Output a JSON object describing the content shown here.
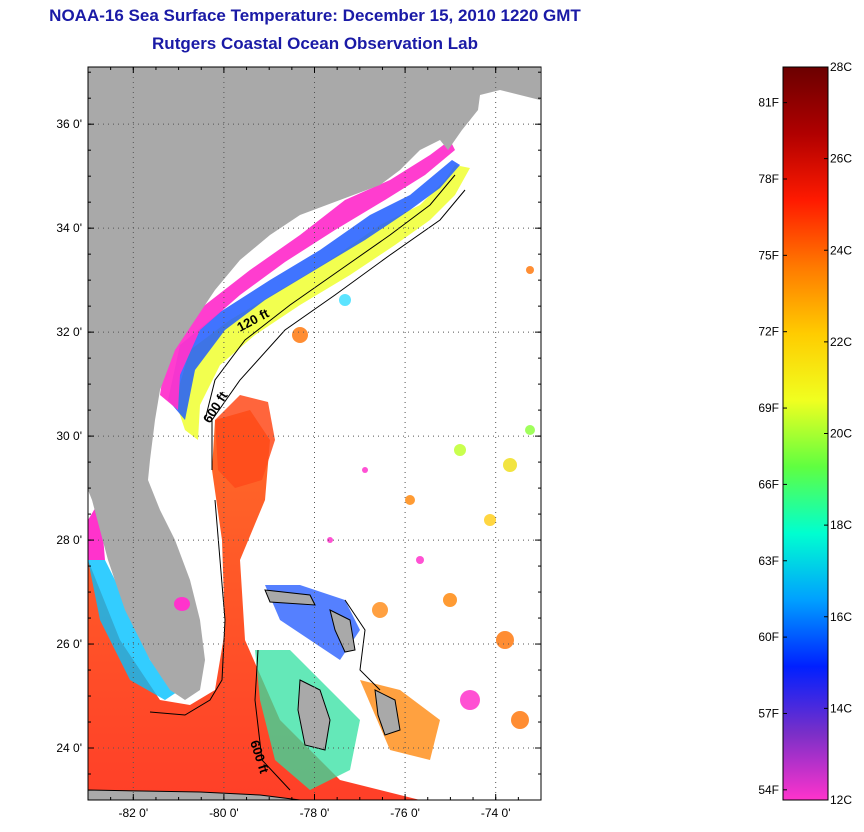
{
  "title": {
    "line1": "NOAA-16 Sea Surface Temperature:  December 15, 2010 1220 GMT",
    "line2": "Rutgers Coastal Ocean Observation Lab"
  },
  "map": {
    "lat_ticks": [
      "36 0'",
      "34 0'",
      "32 0'",
      "30 0'",
      "28 0'",
      "26 0'",
      "24 0'"
    ],
    "lon_ticks": [
      "-82 0'",
      "-80 0'",
      "-78 0'",
      "-76 0'",
      "-74 0'"
    ],
    "lat_values": [
      36,
      34,
      32,
      30,
      28,
      26,
      24
    ],
    "lon_values": [
      -82,
      -80,
      -78,
      -76,
      -74
    ],
    "lat_range": [
      23.0,
      37.1
    ],
    "lon_range": [
      -83.0,
      -73.0
    ],
    "isobath_labels": [
      "120 ft",
      "600 ft",
      "600 ft"
    ],
    "colors": {
      "land": "#a9a9a9",
      "grid": "#555555"
    }
  },
  "colorbar": {
    "celsius_labels": [
      "28C",
      "26C",
      "24C",
      "22C",
      "20C",
      "18C",
      "16C",
      "14C",
      "12C"
    ],
    "fahrenheit_labels": [
      "81F",
      "78F",
      "75F",
      "72F",
      "69F",
      "66F",
      "63F",
      "60F",
      "57F",
      "54F"
    ],
    "celsius_values": [
      28,
      26,
      24,
      22,
      20,
      18,
      16,
      14,
      12
    ],
    "fahrenheit_values": [
      81,
      78,
      75,
      72,
      69,
      66,
      63,
      60,
      57,
      54
    ],
    "range_c": [
      12,
      28
    ],
    "gradient": [
      "#6b0000",
      "#b00000",
      "#ff1a00",
      "#ff7a00",
      "#ffcc00",
      "#f0ff20",
      "#60ff40",
      "#00ffd0",
      "#00a0ff",
      "#0020ff",
      "#7a2fc8",
      "#ff33cc"
    ]
  }
}
